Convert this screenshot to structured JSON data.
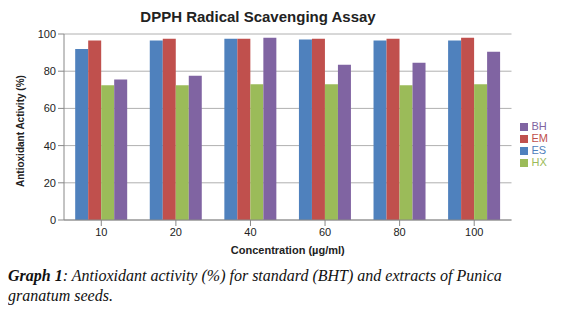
{
  "chart_data": {
    "type": "bar",
    "title": "DPPH Radical Scavenging Assay",
    "x_label": "Concentration (µg/ml)",
    "y_label": "Antioxidant Activity (%)",
    "categories": [
      "10",
      "20",
      "40",
      "60",
      "80",
      "100"
    ],
    "series": [
      {
        "name": "ES",
        "color": "#4f81bd",
        "values": [
          92,
          96.5,
          97.5,
          97,
          96.5,
          96.5
        ]
      },
      {
        "name": "EM",
        "color": "#c0504d",
        "values": [
          96.5,
          97.5,
          97.5,
          97.5,
          97.5,
          98
        ]
      },
      {
        "name": "HX",
        "color": "#9bbb59",
        "values": [
          72.5,
          72.5,
          73,
          73,
          72.5,
          73
        ]
      },
      {
        "name": "BH",
        "color": "#8064a2",
        "values": [
          75.5,
          77.5,
          98,
          83.5,
          84.5,
          90.5
        ]
      }
    ],
    "ylim": [
      0,
      100
    ],
    "yticks": [
      0,
      20,
      40,
      60,
      80,
      100
    ],
    "grid": true,
    "legend": "right",
    "caption_label": "Graph 1",
    "caption_text": ": Antioxidant activity (%) for standard (BHT) and extracts of Punica granatum seeds."
  }
}
